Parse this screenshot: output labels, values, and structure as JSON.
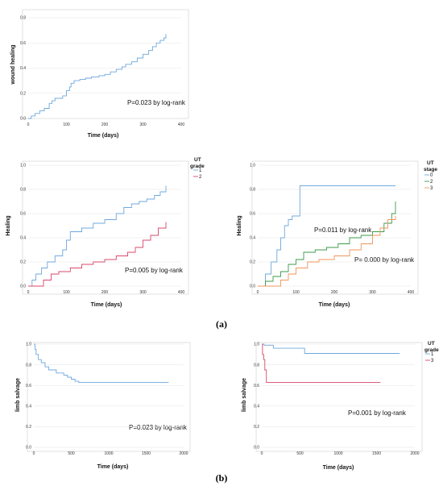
{
  "colors": {
    "blue": "#6fa8dc",
    "red": "#d9486a",
    "green": "#3c9a4a",
    "orange": "#f0955a"
  },
  "panel_labels": [
    "(a)",
    "(b)"
  ],
  "chart_data": [
    {
      "type": "line",
      "step": true,
      "ylabel": "wound healing",
      "xlabel": "Time (days)",
      "annotation": "P=0.023 by log-rank",
      "xlim": [
        0,
        400
      ],
      "ylim": [
        0,
        0.8
      ],
      "xticks": [
        0,
        100,
        200,
        300,
        400
      ],
      "yticks": [
        0.0,
        0.2,
        0.4,
        0.6,
        0.8
      ],
      "legend_title": "",
      "series": [
        {
          "name": "",
          "color": "#6fa8dc",
          "x": [
            0,
            8,
            18,
            30,
            42,
            55,
            62,
            70,
            90,
            100,
            108,
            112,
            120,
            135,
            150,
            165,
            185,
            200,
            215,
            230,
            245,
            255,
            270,
            285,
            300,
            315,
            325,
            335,
            345,
            355,
            360
          ],
          "y": [
            0.0,
            0.02,
            0.04,
            0.06,
            0.08,
            0.12,
            0.14,
            0.16,
            0.18,
            0.22,
            0.25,
            0.28,
            0.3,
            0.31,
            0.32,
            0.33,
            0.34,
            0.35,
            0.37,
            0.39,
            0.41,
            0.43,
            0.45,
            0.48,
            0.51,
            0.54,
            0.57,
            0.6,
            0.62,
            0.64,
            0.67
          ]
        }
      ]
    },
    {
      "type": "line",
      "step": true,
      "ylabel": "Healing",
      "xlabel": "Time (days)",
      "annotation": "P=0.005 by log-rank",
      "xlim": [
        0,
        400
      ],
      "ylim": [
        0,
        1.0
      ],
      "xticks": [
        0,
        100,
        200,
        300,
        400
      ],
      "yticks": [
        0.0,
        0.2,
        0.4,
        0.6,
        0.8,
        1.0
      ],
      "legend_title": "UT grade",
      "legend_title_lines": [
        "UT",
        "grade"
      ],
      "series": [
        {
          "name": "1",
          "color": "#6fa8dc",
          "x": [
            0,
            10,
            20,
            35,
            50,
            70,
            90,
            100,
            110,
            140,
            170,
            200,
            230,
            250,
            270,
            290,
            310,
            330,
            345,
            360
          ],
          "y": [
            0.0,
            0.05,
            0.1,
            0.15,
            0.2,
            0.25,
            0.3,
            0.38,
            0.45,
            0.48,
            0.52,
            0.55,
            0.6,
            0.65,
            0.68,
            0.7,
            0.72,
            0.75,
            0.78,
            0.83
          ]
        },
        {
          "name": "2",
          "color": "#d9486a",
          "x": [
            0,
            40,
            60,
            80,
            110,
            140,
            170,
            200,
            230,
            260,
            280,
            300,
            320,
            340,
            360
          ],
          "y": [
            0.0,
            0.05,
            0.1,
            0.12,
            0.15,
            0.18,
            0.2,
            0.22,
            0.25,
            0.28,
            0.32,
            0.38,
            0.42,
            0.48,
            0.53
          ]
        }
      ]
    },
    {
      "type": "line",
      "step": true,
      "ylabel": "Healing",
      "xlabel": "Time (days)",
      "annotations": [
        "P=0.011 by log-rank",
        "P= 0.000 by log-rank"
      ],
      "xlim": [
        0,
        400
      ],
      "ylim": [
        0,
        1.0
      ],
      "xticks": [
        0,
        100,
        200,
        300,
        400
      ],
      "yticks": [
        0.0,
        0.2,
        0.4,
        0.6,
        0.8,
        1.0
      ],
      "legend_title": "UT stage",
      "legend_title_lines": [
        "UT",
        "stage"
      ],
      "series": [
        {
          "name": "0",
          "color": "#6fa8dc",
          "x": [
            0,
            20,
            35,
            50,
            60,
            70,
            80,
            90,
            110,
            360
          ],
          "y": [
            0.0,
            0.1,
            0.2,
            0.3,
            0.4,
            0.5,
            0.55,
            0.58,
            0.83,
            0.83
          ]
        },
        {
          "name": "2",
          "color": "#3c9a4a",
          "x": [
            0,
            20,
            40,
            60,
            80,
            100,
            120,
            150,
            180,
            210,
            240,
            270,
            300,
            330,
            350,
            360
          ],
          "y": [
            0.0,
            0.04,
            0.08,
            0.12,
            0.18,
            0.22,
            0.28,
            0.3,
            0.32,
            0.35,
            0.4,
            0.42,
            0.45,
            0.52,
            0.6,
            0.7
          ]
        },
        {
          "name": "3",
          "color": "#f0955a",
          "x": [
            0,
            60,
            80,
            100,
            130,
            160,
            200,
            240,
            270,
            300,
            320,
            340,
            360
          ],
          "y": [
            0.0,
            0.05,
            0.1,
            0.15,
            0.2,
            0.22,
            0.25,
            0.3,
            0.35,
            0.42,
            0.48,
            0.55,
            0.58
          ]
        }
      ]
    },
    {
      "type": "line",
      "step": true,
      "ylabel": "limb salvage",
      "xlabel": "Time (days)",
      "annotation": "P=0.023 by log-rank",
      "xlim": [
        0,
        2000
      ],
      "ylim": [
        0,
        1.0
      ],
      "xticks": [
        0,
        500,
        1000,
        1500,
        2000
      ],
      "yticks": [
        0.0,
        0.2,
        0.4,
        0.6,
        0.8,
        1.0
      ],
      "legend_title": "",
      "series": [
        {
          "name": "",
          "color": "#6fa8dc",
          "x": [
            0,
            15,
            30,
            60,
            100,
            150,
            200,
            300,
            400,
            450,
            500,
            550,
            600,
            1800
          ],
          "y": [
            1.0,
            0.95,
            0.9,
            0.85,
            0.82,
            0.78,
            0.75,
            0.72,
            0.7,
            0.68,
            0.66,
            0.64,
            0.63,
            0.63
          ]
        }
      ]
    },
    {
      "type": "line",
      "step": true,
      "ylabel": "limb salvage",
      "xlabel": "Time (days)",
      "annotation": "P=0.001 by log-rank",
      "xlim": [
        0,
        2000
      ],
      "ylim": [
        0,
        1.0
      ],
      "xticks": [
        0,
        500,
        1000,
        1500,
        2000
      ],
      "yticks": [
        0.0,
        0.2,
        0.4,
        0.6,
        0.8,
        1.0
      ],
      "legend_title": "UT grade",
      "legend_title_lines": [
        "UT",
        "grade"
      ],
      "series": [
        {
          "name": "1",
          "color": "#6fa8dc",
          "x": [
            0,
            30,
            150,
            560,
            1800
          ],
          "y": [
            1.0,
            0.99,
            0.96,
            0.91,
            0.91
          ]
        },
        {
          "name": "3",
          "color": "#d9486a",
          "x": [
            0,
            10,
            25,
            40,
            60,
            1550
          ],
          "y": [
            1.0,
            0.9,
            0.85,
            0.75,
            0.63,
            0.63
          ]
        }
      ]
    }
  ]
}
